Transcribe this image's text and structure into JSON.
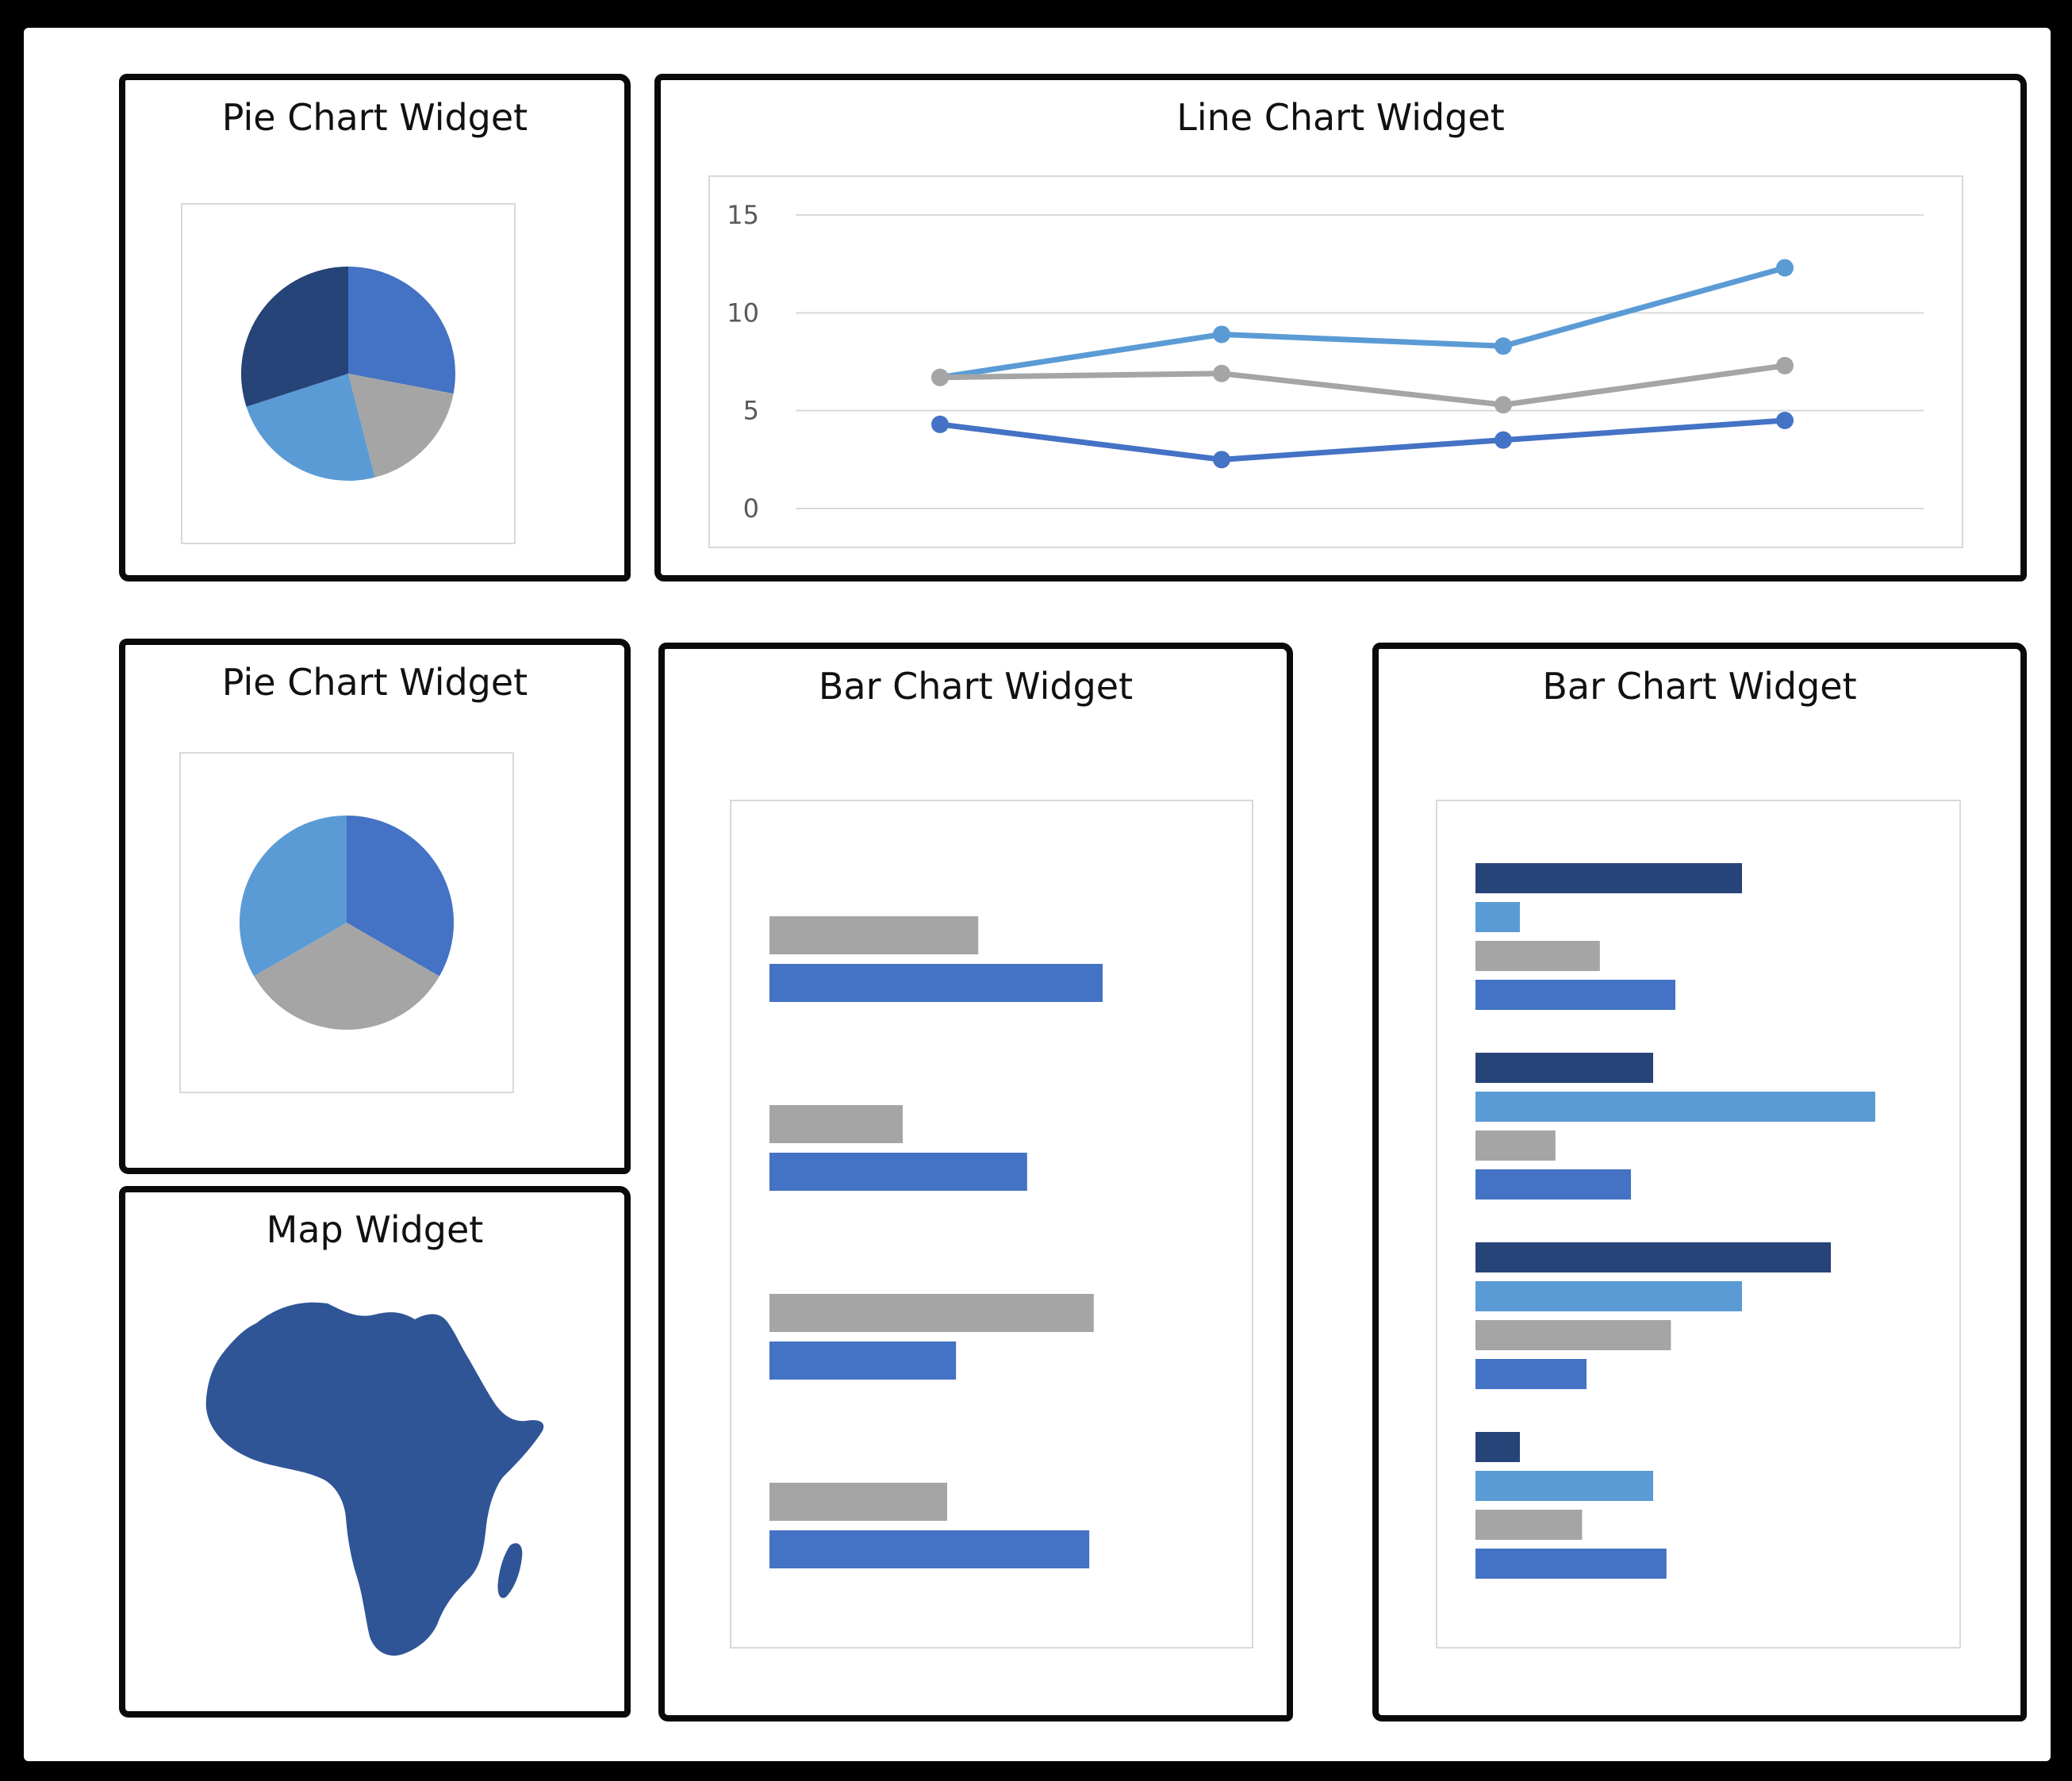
{
  "colors": {
    "dark_blue": "#264478",
    "blue": "#4472c4",
    "light_blue": "#5b9bd5",
    "gray": "#a5a5a5",
    "map_fill": "#2f5597"
  },
  "widgets": {
    "pie1": {
      "title": "Pie Chart Widget"
    },
    "line": {
      "title": "Line Chart Widget"
    },
    "pie2": {
      "title": "Pie Chart Widget"
    },
    "map": {
      "title": "Map Widget",
      "region": "Africa"
    },
    "bar1": {
      "title": "Bar Chart Widget"
    },
    "bar2": {
      "title": "Bar Chart Widget"
    }
  },
  "chart_data": [
    {
      "id": "pie1",
      "type": "pie",
      "values": [
        28,
        18,
        24,
        30
      ],
      "colors": [
        "#4472c4",
        "#a5a5a5",
        "#5b9bd5",
        "#264478"
      ]
    },
    {
      "id": "line",
      "type": "line",
      "ylim": [
        0,
        15
      ],
      "yticks": [
        0,
        5,
        10,
        15
      ],
      "x": [
        1,
        2,
        3,
        4
      ],
      "grid": true,
      "series": [
        {
          "values": [
            6.7,
            8.9,
            8.3,
            12.3
          ],
          "color": "#5b9bd5"
        },
        {
          "values": [
            6.7,
            6.9,
            5.3,
            7.3
          ],
          "color": "#a5a5a5"
        },
        {
          "values": [
            4.3,
            2.5,
            3.5,
            4.5
          ],
          "color": "#4472c4"
        }
      ]
    },
    {
      "id": "pie2",
      "type": "pie",
      "values": [
        1,
        1,
        1
      ],
      "colors": [
        "#4472c4",
        "#a5a5a5",
        "#5b9bd5"
      ]
    },
    {
      "id": "bar1",
      "type": "bar",
      "orientation": "horizontal",
      "xlim": [
        0,
        10
      ],
      "groups": [
        [
          {
            "value": 4.7,
            "color": "#a5a5a5"
          },
          {
            "value": 7.5,
            "color": "#4472c4"
          }
        ],
        [
          {
            "value": 3.0,
            "color": "#a5a5a5"
          },
          {
            "value": 5.8,
            "color": "#4472c4"
          }
        ],
        [
          {
            "value": 7.3,
            "color": "#a5a5a5"
          },
          {
            "value": 4.2,
            "color": "#4472c4"
          }
        ],
        [
          {
            "value": 4.0,
            "color": "#a5a5a5"
          },
          {
            "value": 7.2,
            "color": "#4472c4"
          }
        ]
      ]
    },
    {
      "id": "bar2",
      "type": "bar",
      "orientation": "horizontal",
      "xlim": [
        0,
        10
      ],
      "groups": [
        [
          {
            "value": 6.0,
            "color": "#264478"
          },
          {
            "value": 1.0,
            "color": "#5b9bd5"
          },
          {
            "value": 2.8,
            "color": "#a5a5a5"
          },
          {
            "value": 4.5,
            "color": "#4472c4"
          }
        ],
        [
          {
            "value": 4.0,
            "color": "#264478"
          },
          {
            "value": 9.0,
            "color": "#5b9bd5"
          },
          {
            "value": 1.8,
            "color": "#a5a5a5"
          },
          {
            "value": 3.5,
            "color": "#4472c4"
          }
        ],
        [
          {
            "value": 8.0,
            "color": "#264478"
          },
          {
            "value": 6.0,
            "color": "#5b9bd5"
          },
          {
            "value": 4.4,
            "color": "#a5a5a5"
          },
          {
            "value": 2.5,
            "color": "#4472c4"
          }
        ],
        [
          {
            "value": 1.0,
            "color": "#264478"
          },
          {
            "value": 4.0,
            "color": "#5b9bd5"
          },
          {
            "value": 2.4,
            "color": "#a5a5a5"
          },
          {
            "value": 4.3,
            "color": "#4472c4"
          }
        ]
      ]
    }
  ]
}
